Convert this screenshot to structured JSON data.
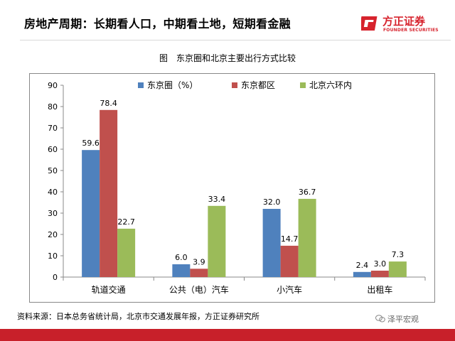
{
  "header": {
    "title": "房地产周期：长期看人口，中期看土地，短期看金融"
  },
  "logo": {
    "cn": "方正证券",
    "en": "FOUNDER SECURITIES",
    "color": "#d7232d"
  },
  "chart_data": {
    "type": "bar",
    "title": "图　东京圈和北京主要出行方式比较",
    "xlabel": "",
    "ylabel": "",
    "ylim": [
      0,
      90
    ],
    "yticks": [
      0,
      10,
      20,
      30,
      40,
      50,
      60,
      70,
      80,
      90
    ],
    "grid": false,
    "legend_position": "top-right",
    "categories": [
      "轨道交通",
      "公共（电）汽车",
      "小汽车",
      "出租车"
    ],
    "series": [
      {
        "name": "东京圈（%）",
        "color": "#4f81bd",
        "values": [
          59.6,
          6.0,
          32.0,
          2.4
        ]
      },
      {
        "name": "东京都区",
        "color": "#c0504d",
        "values": [
          78.4,
          3.9,
          14.7,
          3.0
        ]
      },
      {
        "name": "北京六环内",
        "color": "#9bbb59",
        "values": [
          22.7,
          33.4,
          36.7,
          7.3
        ]
      }
    ]
  },
  "footer": {
    "source": "资料来源：日本总务省统计局，北京市交通发展年报，方正证券研究所",
    "wechat": "泽平宏观"
  },
  "colors": {
    "bar": "#c8202a"
  }
}
